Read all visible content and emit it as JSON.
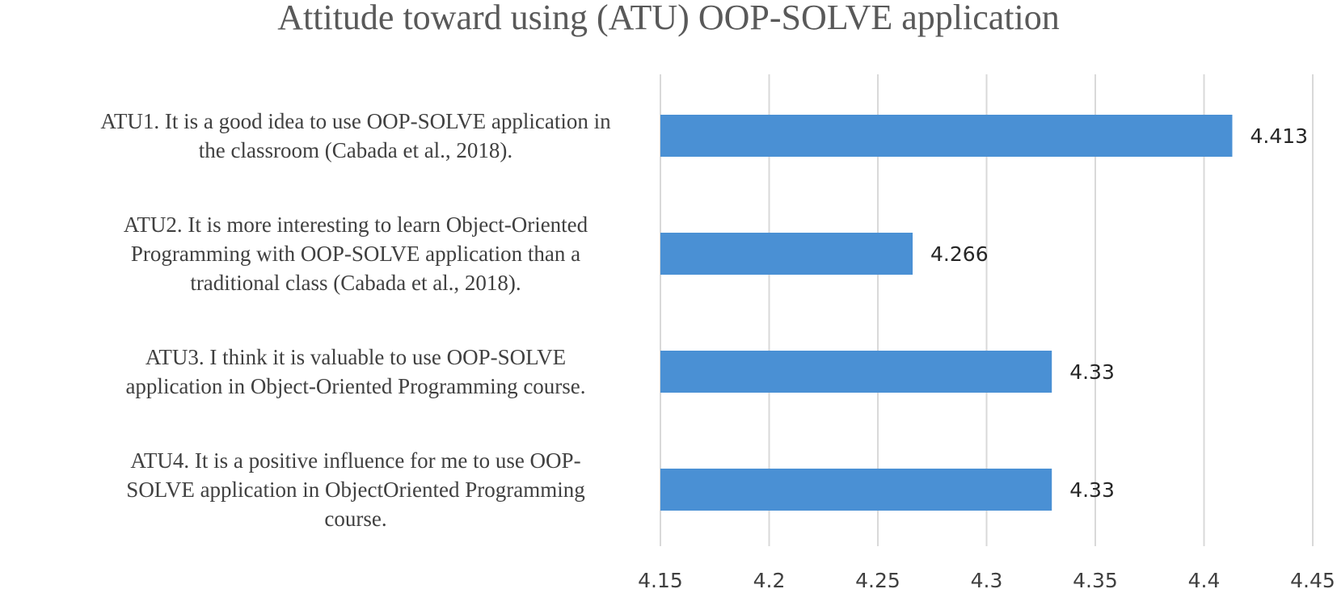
{
  "chart_data": {
    "type": "bar",
    "orientation": "horizontal",
    "title": "Attitude toward using (ATU) OOP-SOLVE application",
    "categories": [
      [
        "ATU1. It is a good idea to use OOP-SOLVE application in",
        "the classroom (Cabada et al., 2018)."
      ],
      [
        "ATU2. It is more interesting to learn Object-Oriented",
        "Programming with OOP-SOLVE application than a",
        "traditional class (Cabada et al., 2018)."
      ],
      [
        "ATU3. I think it is valuable to use OOP-SOLVE",
        "application in Object-Oriented Programming course."
      ],
      [
        "ATU4. It is a positive influence for me to use OOP-",
        "SOLVE application in ObjectOriented Programming",
        "course."
      ]
    ],
    "values": [
      4.413,
      4.266,
      4.33,
      4.33
    ],
    "value_labels": [
      "4.413",
      "4.266",
      "4.33",
      "4.33"
    ],
    "xlim": [
      4.15,
      4.45
    ],
    "ticks": [
      "4.15",
      "4.2",
      "4.25",
      "4.3",
      "4.35",
      "4.4",
      "4.45"
    ],
    "grid": true,
    "legend": "none",
    "bar_color": "#4a90d4",
    "xlabel": "",
    "ylabel": ""
  }
}
